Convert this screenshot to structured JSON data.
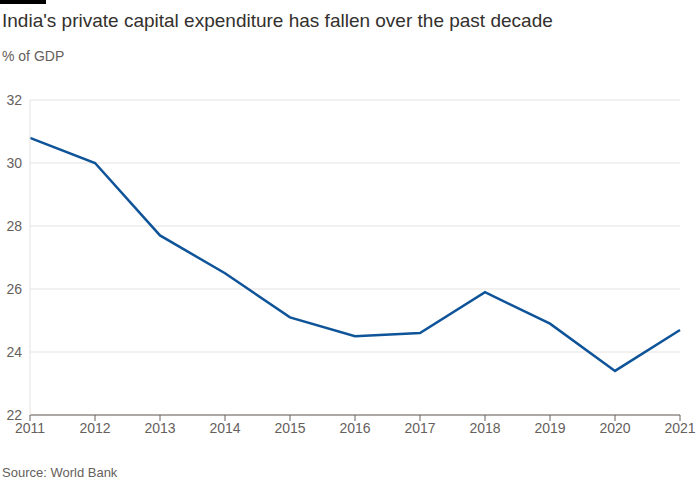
{
  "chart_data": {
    "type": "line",
    "title": "India's private capital expenditure has fallen over the past decade",
    "subtitle": "% of GDP",
    "source": "Source: World Bank",
    "categories": [
      "2011",
      "2012",
      "2013",
      "2014",
      "2015",
      "2016",
      "2017",
      "2018",
      "2019",
      "2020",
      "2021"
    ],
    "values": [
      30.8,
      30.0,
      27.7,
      26.5,
      25.1,
      24.5,
      24.6,
      25.9,
      24.9,
      23.4,
      24.7
    ],
    "color": "#0f5499",
    "ylim": [
      22,
      32
    ],
    "yticks": [
      22,
      24,
      26,
      28,
      30,
      32
    ],
    "grid": true
  }
}
